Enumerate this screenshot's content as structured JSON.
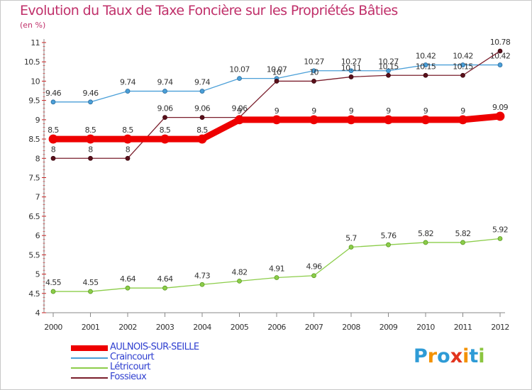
{
  "header": {
    "title": "Evolution du Taux de Taxe Foncière sur les Propriétés Bâties",
    "unit": "(en %)"
  },
  "logo": {
    "chars": [
      "P",
      "r",
      "o",
      "x",
      "i",
      "t",
      "i"
    ],
    "colors": [
      "#2e9bd6",
      "#f39200",
      "#2e9bd6",
      "#e2341d",
      "#f39200",
      "#2e9bd6",
      "#8bc53f"
    ]
  },
  "chart_data": {
    "type": "line",
    "title": "Evolution du Taux de Taxe Foncière sur les Propriétés Bâties",
    "ylabel": "(en %)",
    "xlabel": "",
    "ylim": [
      4,
      11
    ],
    "y_ticks": [
      "4",
      "4.5",
      "5",
      "5.5",
      "6",
      "6.5",
      "7",
      "7.5",
      "8",
      "8.5",
      "9",
      "9.5",
      "10",
      "10.5",
      "11"
    ],
    "categories": [
      "2000",
      "2001",
      "2002",
      "2003",
      "2004",
      "2005",
      "2006",
      "2007",
      "2008",
      "2009",
      "2010",
      "2011",
      "2012"
    ],
    "grid": false,
    "legend_position": "bottom-left",
    "series": [
      {
        "name": "Craincourt",
        "color": "#4a9fd8",
        "values": [
          9.46,
          9.46,
          9.74,
          9.74,
          9.74,
          10.07,
          10.07,
          10.27,
          10.27,
          10.27,
          10.42,
          10.42,
          10.42
        ],
        "labels": [
          "9.46",
          "9.46",
          "9.74",
          "9.74",
          "9.74",
          "10.07",
          "10.07",
          "10.27",
          "10.27",
          "10.27",
          "10.42",
          "10.42",
          "10.42"
        ]
      },
      {
        "name": "Létricourt",
        "color": "#8ccd4a",
        "values": [
          4.55,
          4.55,
          4.64,
          4.64,
          4.73,
          4.82,
          4.91,
          4.96,
          5.7,
          5.76,
          5.82,
          5.82,
          5.92
        ],
        "labels": [
          "4.55",
          "4.55",
          "4.64",
          "4.64",
          "4.73",
          "4.82",
          "4.91",
          "4.96",
          "5.7",
          "5.76",
          "5.82",
          "5.82",
          "5.92"
        ]
      },
      {
        "name": "Fossieux",
        "color": "#7a1e2c",
        "values": [
          8,
          8,
          8,
          9.06,
          9.06,
          9.06,
          10,
          10,
          10.11,
          10.15,
          10.15,
          10.15,
          10.78
        ],
        "labels": [
          "8",
          "8",
          "8",
          "9.06",
          "9.06",
          "9.06",
          "10",
          "10",
          "10.11",
          "10.15",
          "10.15",
          "10.15",
          "10.78"
        ]
      },
      {
        "name": "AULNOIS-SUR-SEILLE",
        "color": "#ee0000",
        "values": [
          8.5,
          8.5,
          8.5,
          8.5,
          8.5,
          9,
          9,
          9,
          9,
          9,
          9,
          9,
          9.09
        ],
        "labels": [
          "8.5",
          "8.5",
          "8.5",
          "8.5",
          "8.5",
          "9",
          "9",
          "9",
          "9",
          "9",
          "9",
          "9",
          "9.09"
        ]
      }
    ],
    "legend": [
      "AULNOIS-SUR-SEILLE",
      "Craincourt",
      "Létricourt",
      "Fossieux"
    ]
  }
}
